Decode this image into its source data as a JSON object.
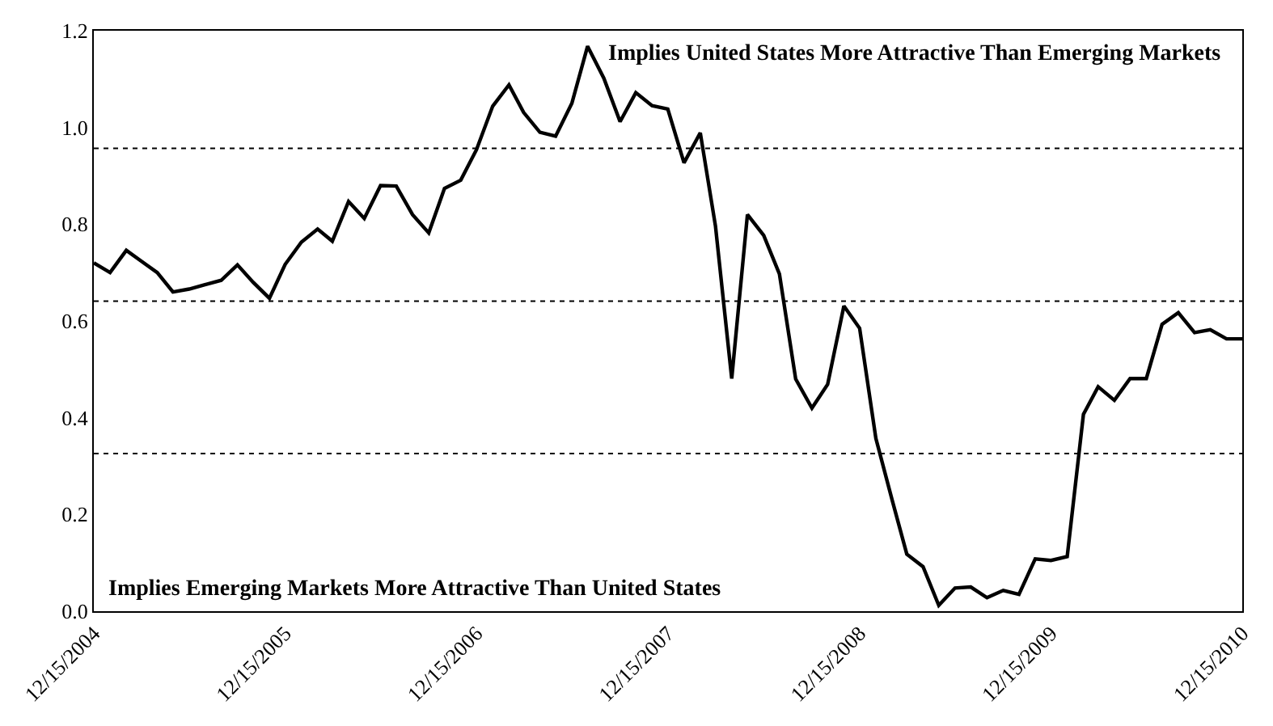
{
  "chart_data": {
    "type": "line",
    "x": [
      "2004-12-15",
      "2005-01-15",
      "2005-02-15",
      "2005-03-15",
      "2005-04-15",
      "2005-05-15",
      "2005-06-15",
      "2005-07-15",
      "2005-08-15",
      "2005-09-15",
      "2005-10-15",
      "2005-11-15",
      "2005-12-15",
      "2006-01-15",
      "2006-02-15",
      "2006-03-15",
      "2006-04-15",
      "2006-05-15",
      "2006-06-15",
      "2006-07-15",
      "2006-08-15",
      "2006-09-15",
      "2006-10-15",
      "2006-11-15",
      "2006-12-15",
      "2007-01-15",
      "2007-02-15",
      "2007-03-15",
      "2007-04-15",
      "2007-05-15",
      "2007-06-15",
      "2007-07-15",
      "2007-08-15",
      "2007-09-15",
      "2007-10-15",
      "2007-11-15",
      "2007-12-15",
      "2008-01-15",
      "2008-02-15",
      "2008-03-15",
      "2008-04-15",
      "2008-05-15",
      "2008-06-15",
      "2008-07-15",
      "2008-08-15",
      "2008-09-15",
      "2008-10-15",
      "2008-11-15",
      "2008-12-15",
      "2009-01-15",
      "2009-02-15",
      "2009-03-15",
      "2009-04-15",
      "2009-05-15",
      "2009-06-15",
      "2009-07-15",
      "2009-08-15",
      "2009-09-15",
      "2009-10-15",
      "2009-11-15",
      "2009-12-15",
      "2010-01-15",
      "2010-02-15",
      "2010-03-15",
      "2010-04-15",
      "2010-05-15",
      "2010-06-15",
      "2010-07-15",
      "2010-08-15",
      "2010-09-15",
      "2010-10-15",
      "2010-11-15",
      "2010-12-15"
    ],
    "series": [
      {
        "color": "#000000",
        "values": [
          0.72,
          0.7,
          0.746,
          0.724,
          0.7,
          0.66,
          0.666,
          0.675,
          0.684,
          0.716,
          0.68,
          0.647,
          0.717,
          0.763,
          0.79,
          0.765,
          0.847,
          0.812,
          0.88,
          0.879,
          0.82,
          0.782,
          0.874,
          0.891,
          0.954,
          1.044,
          1.088,
          1.031,
          0.99,
          0.982,
          1.05,
          1.168,
          1.102,
          1.012,
          1.072,
          1.045,
          1.038,
          0.927,
          0.989,
          0.796,
          0.481,
          0.82,
          0.777,
          0.697,
          0.48,
          0.42,
          0.469,
          0.631,
          0.585,
          0.357,
          0.23,
          0.118,
          0.092,
          0.012,
          0.048,
          0.05,
          0.028,
          0.043,
          0.035,
          0.108,
          0.105,
          0.113,
          0.407,
          0.464,
          0.436,
          0.481,
          0.481,
          0.593,
          0.617,
          0.576,
          0.582,
          0.563,
          0.563
        ]
      }
    ],
    "xlim": [
      "2004-12-15",
      "2010-12-15"
    ],
    "xticks": [
      {
        "value": "2004-12-15",
        "label": "12/15/2004"
      },
      {
        "value": "2005-12-15",
        "label": "12/15/2005"
      },
      {
        "value": "2006-12-15",
        "label": "12/15/2006"
      },
      {
        "value": "2007-12-15",
        "label": "12/15/2007"
      },
      {
        "value": "2008-12-15",
        "label": "12/15/2008"
      },
      {
        "value": "2009-12-15",
        "label": "12/15/2009"
      },
      {
        "value": "2010-12-15",
        "label": "12/15/2010"
      }
    ],
    "ylim": [
      0,
      1.2
    ],
    "yticks": [
      {
        "value": 0,
        "label": "0.0"
      },
      {
        "value": 0.2,
        "label": "0.2"
      },
      {
        "value": 0.4,
        "label": "0.4"
      },
      {
        "value": 0.6,
        "label": "0.6"
      },
      {
        "value": 0.8,
        "label": "0.8"
      },
      {
        "value": 1.0,
        "label": "1.0"
      },
      {
        "value": 1.2,
        "label": "1.2"
      }
    ],
    "ref_lines": [
      {
        "axis": "y",
        "value": 0.957,
        "color": "#000000",
        "line_style": "dotted"
      },
      {
        "axis": "y",
        "value": 0.641,
        "color": "#000000",
        "line_style": "dotted"
      },
      {
        "axis": "y",
        "value": 0.326,
        "color": "#000000",
        "line_style": "dotted"
      }
    ],
    "annotations": [
      "Implies United States More Attractive Than Emerging Markets",
      "Implies Emerging Markets More Attractive Than United States"
    ],
    "marker": "none",
    "line_style": "solid"
  }
}
